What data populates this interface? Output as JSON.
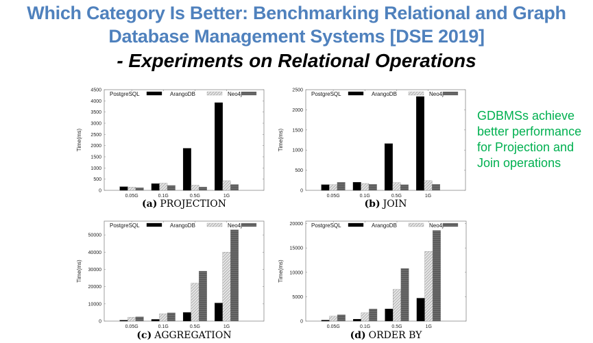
{
  "header": {
    "title_line1": "Which Category Is Better: Benchmarking Relational and Graph",
    "title_line2": "Database Management Systems [DSE 2019]",
    "subtitle": "- Experiments on Relational Operations"
  },
  "note": {
    "lines": [
      "GDBMSs achieve",
      "better performance",
      "for Projection and",
      "Join operations"
    ],
    "color": "#00b050"
  },
  "colors": {
    "title": "#4f81bd",
    "PostgreSQL": "#000000",
    "ArangoDB": "#c8c8c8",
    "Neo4j": "#666666"
  },
  "chart_data": [
    {
      "type": "bar",
      "caption_letter": "(a)",
      "caption_text": "PROJECTION",
      "ylabel": "Time(ms)",
      "xlabel": "",
      "categories": [
        "0.05G",
        "0.1G",
        "0.5G",
        "1G"
      ],
      "ylim": [
        0,
        4500
      ],
      "yticks": [
        0,
        500,
        1000,
        1500,
        2000,
        2500,
        3000,
        3500,
        4000,
        4500
      ],
      "legend_position": "top",
      "series": [
        {
          "name": "PostgreSQL",
          "values": [
            160,
            300,
            1880,
            3920
          ]
        },
        {
          "name": "ArangoDB",
          "values": [
            140,
            320,
            230,
            430
          ]
        },
        {
          "name": "Neo4j",
          "values": [
            120,
            220,
            150,
            260
          ]
        }
      ]
    },
    {
      "type": "bar",
      "caption_letter": "(b)",
      "caption_text": "JOIN",
      "ylabel": "Time(ms)",
      "xlabel": "",
      "categories": [
        "0.05G",
        "0.1G",
        "0.5G",
        "1G"
      ],
      "ylim": [
        0,
        2500
      ],
      "yticks": [
        0,
        500,
        1000,
        1500,
        2000,
        2500
      ],
      "legend_position": "top",
      "series": [
        {
          "name": "PostgreSQL",
          "values": [
            140,
            200,
            1160,
            2330
          ]
        },
        {
          "name": "ArangoDB",
          "values": [
            140,
            170,
            190,
            240
          ]
        },
        {
          "name": "Neo4j",
          "values": [
            200,
            150,
            140,
            150
          ]
        }
      ]
    },
    {
      "type": "bar",
      "caption_letter": "(c)",
      "caption_text": "AGGREGATION",
      "ylabel": "Time(ms)",
      "xlabel": "",
      "categories": [
        "0.05G",
        "0.1G",
        "0.5G",
        "1G"
      ],
      "ylim": [
        0,
        58000
      ],
      "yticks": [
        0,
        10000,
        20000,
        30000,
        40000,
        50000
      ],
      "legend_position": "top",
      "series": [
        {
          "name": "PostgreSQL",
          "values": [
            500,
            1000,
            5000,
            10500
          ]
        },
        {
          "name": "ArangoDB",
          "values": [
            2200,
            4200,
            22000,
            40000
          ]
        },
        {
          "name": "Neo4j",
          "values": [
            2500,
            4800,
            29000,
            53000
          ]
        }
      ]
    },
    {
      "type": "bar",
      "caption_letter": "(d)",
      "caption_text": "ORDER BY",
      "ylabel": "Time(ms)",
      "xlabel": "",
      "categories": [
        "0.05G",
        "0.1G",
        "0.5G",
        "1G"
      ],
      "ylim": [
        0,
        20500
      ],
      "yticks": [
        0,
        5000,
        10000,
        15000,
        20000
      ],
      "legend_position": "top",
      "series": [
        {
          "name": "PostgreSQL",
          "values": [
            200,
            400,
            2500,
            4700
          ]
        },
        {
          "name": "ArangoDB",
          "values": [
            1000,
            1700,
            6500,
            14300
          ]
        },
        {
          "name": "Neo4j",
          "values": [
            1300,
            2500,
            10800,
            18600
          ]
        }
      ]
    }
  ]
}
